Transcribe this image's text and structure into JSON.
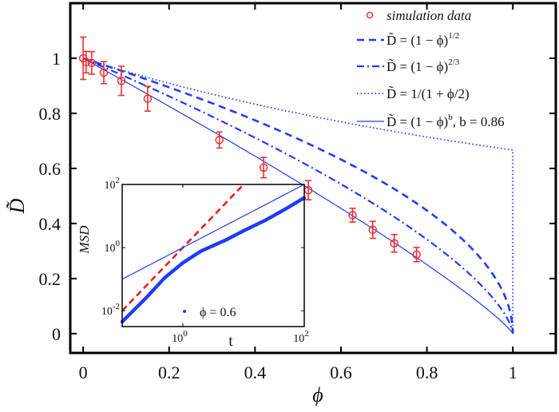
{
  "chart_data": [
    {
      "type": "scatter",
      "xlabel": "ϕ",
      "ylabel": "D̃",
      "xlim": [
        -0.03,
        1.1
      ],
      "ylim": [
        -0.07,
        1.2
      ],
      "xticks": [
        "0",
        "0.2",
        "0.4",
        "0.6",
        "0.8",
        "1"
      ],
      "yticks": [
        "0",
        "0.2",
        "0.4",
        "0.6",
        "0.8",
        "1"
      ],
      "grid": false,
      "legend_position": "top-right",
      "series": [
        {
          "name": "simulation data",
          "style": "red-circle-errorbar",
          "x": [
            0,
            0.007,
            0.02,
            0.048,
            0.089,
            0.15,
            0.317,
            0.42,
            0.524,
            0.627,
            0.674,
            0.724,
            0.776
          ],
          "y": [
            1.0,
            0.986,
            0.983,
            0.948,
            0.918,
            0.853,
            0.703,
            0.603,
            0.521,
            0.43,
            0.377,
            0.328,
            0.287
          ],
          "err": [
            0.077,
            0.039,
            0.041,
            0.04,
            0.053,
            0.045,
            0.029,
            0.037,
            0.035,
            0.025,
            0.031,
            0.032,
            0.026
          ]
        },
        {
          "name": "D̃ = (1 − ϕ)",
          "name_exponent": "1/2",
          "style": "dashed",
          "formula": "(1-x)^0.5"
        },
        {
          "name": "D̃ = (1 − ϕ)",
          "name_exponent": "2/3",
          "style": "dashdot",
          "formula": "(1-x)^(2/3)"
        },
        {
          "name": "D̃ = 1/(1 + ϕ/2)",
          "name_exponent": "",
          "style": "dotted",
          "formula": "1/(1+x/2)"
        },
        {
          "name": "D̃ = (1 − ϕ)",
          "name_exponent": "b",
          "name_suffix": ", b = 0.86",
          "style": "solid",
          "formula": "(1-x)^0.86"
        }
      ]
    },
    {
      "type": "line",
      "inset": true,
      "xlabel": "t",
      "ylabel": "MSD",
      "xscale": "log",
      "yscale": "log",
      "xlim": [
        0.1,
        100
      ],
      "ylim": [
        0.00316,
        100
      ],
      "xticks": [
        "10^0",
        "10^2"
      ],
      "yticks": [
        "10^-2",
        "10^0",
        "10^2"
      ],
      "series": [
        {
          "name": "ϕ = 0.6",
          "style": "blue-dots",
          "x": [
            0.1,
            0.11,
            0.25,
            0.5,
            1,
            2,
            5.1,
            10,
            23,
            50,
            98,
            100
          ],
          "y": [
            0.0045,
            0.0054,
            0.026,
            0.11,
            0.33,
            0.78,
            1.74,
            3.4,
            7.4,
            17,
            37,
            38
          ]
        },
        {
          "style": "red-dashed",
          "formula": "t^2"
        },
        {
          "style": "blue-solid",
          "formula": "t"
        }
      ]
    }
  ],
  "colors": {
    "data": "#f22f2f",
    "model": "#1f3cff",
    "axis": "#000000"
  }
}
